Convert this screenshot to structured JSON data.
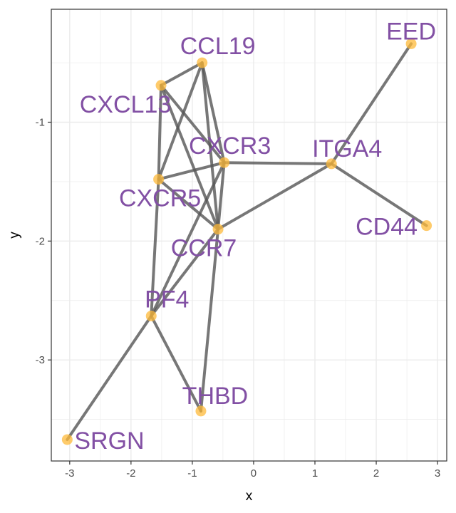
{
  "chart_data": {
    "type": "scatter",
    "xlabel": "x",
    "ylabel": "y",
    "xlim": [
      -3.3,
      3.15
    ],
    "ylim": [
      -3.85,
      -0.05
    ],
    "x_ticks": [
      -3,
      -2,
      -1,
      0,
      1,
      2,
      3
    ],
    "y_ticks": [
      -1,
      -2,
      -3
    ],
    "grid": true,
    "nodes": [
      {
        "name": "EED",
        "x": 2.57,
        "y": -0.34
      },
      {
        "name": "CCL19",
        "x": -0.84,
        "y": -0.5
      },
      {
        "name": "CXCL13",
        "x": -1.51,
        "y": -0.69
      },
      {
        "name": "CXCR3",
        "x": -0.48,
        "y": -1.34
      },
      {
        "name": "ITGA4",
        "x": 1.27,
        "y": -1.35
      },
      {
        "name": "CXCR5",
        "x": -1.55,
        "y": -1.48
      },
      {
        "name": "CD44",
        "x": 2.82,
        "y": -1.87
      },
      {
        "name": "CCR7",
        "x": -0.58,
        "y": -1.9
      },
      {
        "name": "PF4",
        "x": -1.67,
        "y": -2.63
      },
      {
        "name": "THBD",
        "x": -0.86,
        "y": -3.43
      },
      {
        "name": "SRGN",
        "x": -3.04,
        "y": -3.67
      }
    ],
    "edges": [
      [
        "CCL19",
        "CXCL13"
      ],
      [
        "CCL19",
        "CXCR5"
      ],
      [
        "CCL19",
        "CXCR3"
      ],
      [
        "CCL19",
        "CCR7"
      ],
      [
        "CXCL13",
        "CXCR5"
      ],
      [
        "CXCL13",
        "CXCR3"
      ],
      [
        "CXCL13",
        "CCR7"
      ],
      [
        "CXCR5",
        "CXCR3"
      ],
      [
        "CXCR5",
        "CCR7"
      ],
      [
        "CXCR5",
        "PF4"
      ],
      [
        "CXCR3",
        "ITGA4"
      ],
      [
        "CXCR3",
        "CCR7"
      ],
      [
        "CXCR3",
        "PF4"
      ],
      [
        "CCR7",
        "ITGA4"
      ],
      [
        "CCR7",
        "PF4"
      ],
      [
        "CCR7",
        "THBD"
      ],
      [
        "ITGA4",
        "EED"
      ],
      [
        "ITGA4",
        "CD44"
      ],
      [
        "PF4",
        "SRGN"
      ],
      [
        "PF4",
        "THBD"
      ]
    ],
    "colors": {
      "edge": "#555555",
      "node": "#FDB93A",
      "label": "#8250A4",
      "grid": "#EBEBEB",
      "panel_border": "#333333"
    }
  }
}
